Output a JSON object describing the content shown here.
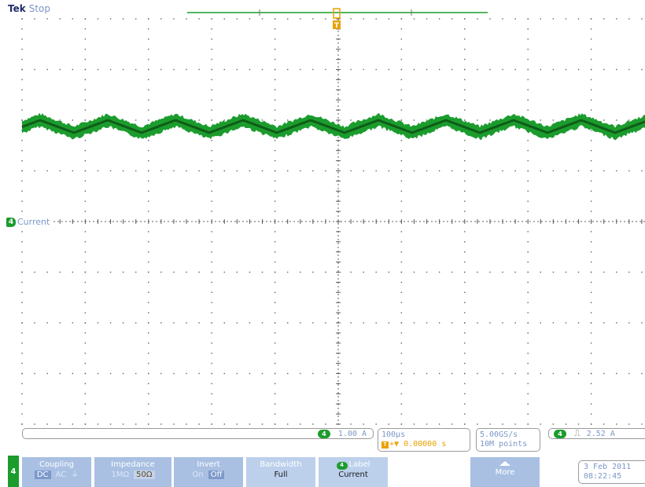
{
  "header": {
    "logo": "Tek",
    "status": "Stop"
  },
  "channel": {
    "number": "4",
    "label": "Current",
    "color": "#1b9c2d"
  },
  "colors": {
    "trace": "#1b9c2d",
    "trace_dark": "#0f5c17",
    "grid": "#606060",
    "readout_text": "#7c97c8",
    "trigger": "#e8a200",
    "menu_bg": "#a9c0e3"
  },
  "trigger_marker": {
    "symbol": "T"
  },
  "readouts": {
    "vertical": {
      "channel": "4",
      "scale": "1.00 A"
    },
    "horizontal": {
      "scale": "100µs",
      "position_badge": "T",
      "position_arrows": "+▼",
      "position": "0.00000 s"
    },
    "acquisition": {
      "rate": "5.00GS/s",
      "record": "10M points"
    },
    "trigger": {
      "channel": "4",
      "slope_icon": "rising-edge-icon",
      "slope_glyph": "⎍",
      "level": "2.52 A"
    }
  },
  "menu": {
    "channel_tab": "4",
    "coupling": {
      "title": "Coupling",
      "options": [
        "DC",
        "AC",
        "⏚"
      ],
      "selected": "DC"
    },
    "impedance": {
      "title": "Impedance",
      "options": [
        "1MΩ",
        "50Ω"
      ],
      "selected": "50Ω"
    },
    "invert": {
      "title": "Invert",
      "options": [
        "On",
        "Off"
      ],
      "selected": "Off"
    },
    "bandwidth": {
      "title": "Bandwidth",
      "value": "Full"
    },
    "label": {
      "chip": "4",
      "title": "Label",
      "value": "Current"
    },
    "more": {
      "title": "More",
      "icon": "up-arrow-icon"
    }
  },
  "datetime": {
    "date": "3 Feb 2011",
    "time": "08:22:45"
  }
}
